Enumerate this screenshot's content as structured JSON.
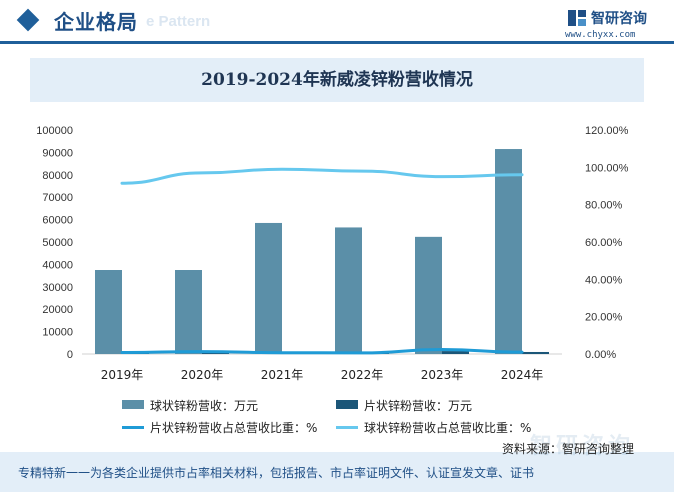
{
  "header": {
    "title": "企业格局",
    "bg_text": "e Pattern",
    "logo_text": "智研咨询",
    "logo_url": "www.chyxx.com"
  },
  "chart_data": {
    "type": "bar",
    "title": "2019-2024年新威凌锌粉营收情况",
    "categories": [
      "2019年",
      "2020年",
      "2021年",
      "2022年",
      "2023年",
      "2024年"
    ],
    "ylim_left": [
      0,
      100000
    ],
    "left_ticks": [
      "100000",
      "90000",
      "80000",
      "70000",
      "60000",
      "50000",
      "40000",
      "30000",
      "20000",
      "10000",
      "0"
    ],
    "ylim_right": [
      0,
      120
    ],
    "right_ticks": [
      "120.00%",
      "100.00%",
      "80.00%",
      "60.00%",
      "40.00%",
      "20.00%",
      "0.00%"
    ],
    "series": [
      {
        "name": "球状锌粉营收：万元",
        "kind": "bar",
        "axis": "left",
        "color": "#5b8fa8",
        "values": [
          37500,
          37500,
          58500,
          56500,
          52300,
          91500
        ]
      },
      {
        "name": "片状锌粉营收：万元",
        "kind": "bar",
        "axis": "left",
        "color": "#1b5678",
        "values": [
          300,
          500,
          400,
          350,
          1300,
          900
        ]
      },
      {
        "name": "片状锌粉营收占总营收比重：%",
        "kind": "line",
        "axis": "right",
        "color": "#1f9bd6",
        "values": [
          0.8,
          1.3,
          0.7,
          0.6,
          2.4,
          1.0
        ]
      },
      {
        "name": "球状锌粉营收占总营收比重：%",
        "kind": "line",
        "axis": "right",
        "color": "#66c8ee",
        "values": [
          91.5,
          97.0,
          99.0,
          98.0,
          95.0,
          96.0
        ]
      }
    ],
    "grid": false,
    "legend_position": "bottom"
  },
  "footer": {
    "source": "资料来源：智研咨询整理",
    "text": "专精特新一一为各类企业提供市占率相关材料，包括报告、市占率证明文件、认证宣发文章、证书",
    "watermark": "智研咨询"
  }
}
